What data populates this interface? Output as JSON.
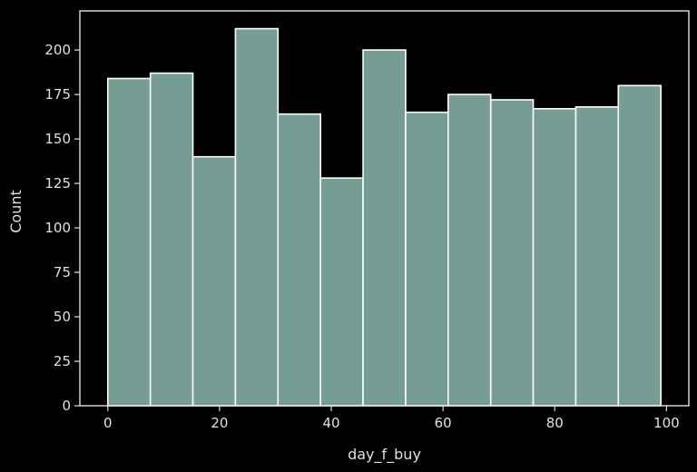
{
  "chart_data": {
    "type": "bar",
    "subtype": "histogram",
    "title": "",
    "xlabel": "day_f_buy",
    "ylabel": "Count",
    "bins": [
      {
        "start": 0.0,
        "end": 7.62,
        "count": 184
      },
      {
        "start": 7.62,
        "end": 15.23,
        "count": 187
      },
      {
        "start": 15.23,
        "end": 22.85,
        "count": 140
      },
      {
        "start": 22.85,
        "end": 30.46,
        "count": 212
      },
      {
        "start": 30.46,
        "end": 38.08,
        "count": 164
      },
      {
        "start": 38.08,
        "end": 45.69,
        "count": 128
      },
      {
        "start": 45.69,
        "end": 53.31,
        "count": 200
      },
      {
        "start": 53.31,
        "end": 60.92,
        "count": 165
      },
      {
        "start": 60.92,
        "end": 68.54,
        "count": 175
      },
      {
        "start": 68.54,
        "end": 76.15,
        "count": 172
      },
      {
        "start": 76.15,
        "end": 83.77,
        "count": 167
      },
      {
        "start": 83.77,
        "end": 91.38,
        "count": 168
      },
      {
        "start": 91.38,
        "end": 99.0,
        "count": 180
      }
    ],
    "xlim": [
      -5.0,
      104.0
    ],
    "ylim": [
      0,
      222
    ],
    "xticks": [
      0,
      20,
      40,
      60,
      80,
      100
    ],
    "xtick_labels": [
      "0",
      "20",
      "40",
      "60",
      "80",
      "100"
    ],
    "yticks": [
      0,
      25,
      50,
      75,
      100,
      125,
      150,
      175,
      200
    ],
    "ytick_labels": [
      "0",
      "25",
      "50",
      "75",
      "100",
      "125",
      "150",
      "175",
      "200"
    ],
    "grid": false,
    "legend": "none",
    "colors": {
      "background": "#000000",
      "bar_fill": "#759d94",
      "bar_edge": "#ffffff",
      "axes": "#e0e0e0",
      "text": "#e0e0e0"
    }
  }
}
